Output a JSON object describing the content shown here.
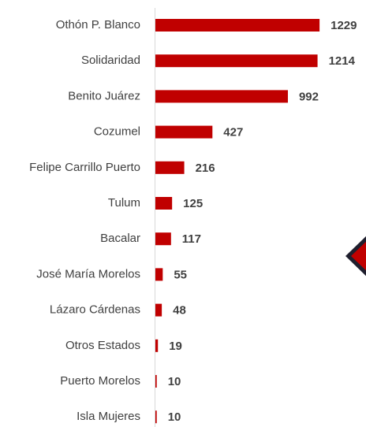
{
  "chart_data": {
    "type": "bar",
    "orientation": "horizontal",
    "categories": [
      "Othón P. Blanco",
      "Solidaridad",
      "Benito Juárez",
      "Cozumel",
      "Felipe Carrillo Puerto",
      "Tulum",
      "Bacalar",
      "José María Morelos",
      "Lázaro Cárdenas",
      "Otros Estados",
      "Puerto Morelos",
      "Isla Mujeres"
    ],
    "values": [
      1229,
      1214,
      992,
      427,
      216,
      125,
      117,
      55,
      48,
      19,
      10,
      10
    ],
    "color": "#c00000",
    "xlim": [
      0,
      1500
    ]
  }
}
